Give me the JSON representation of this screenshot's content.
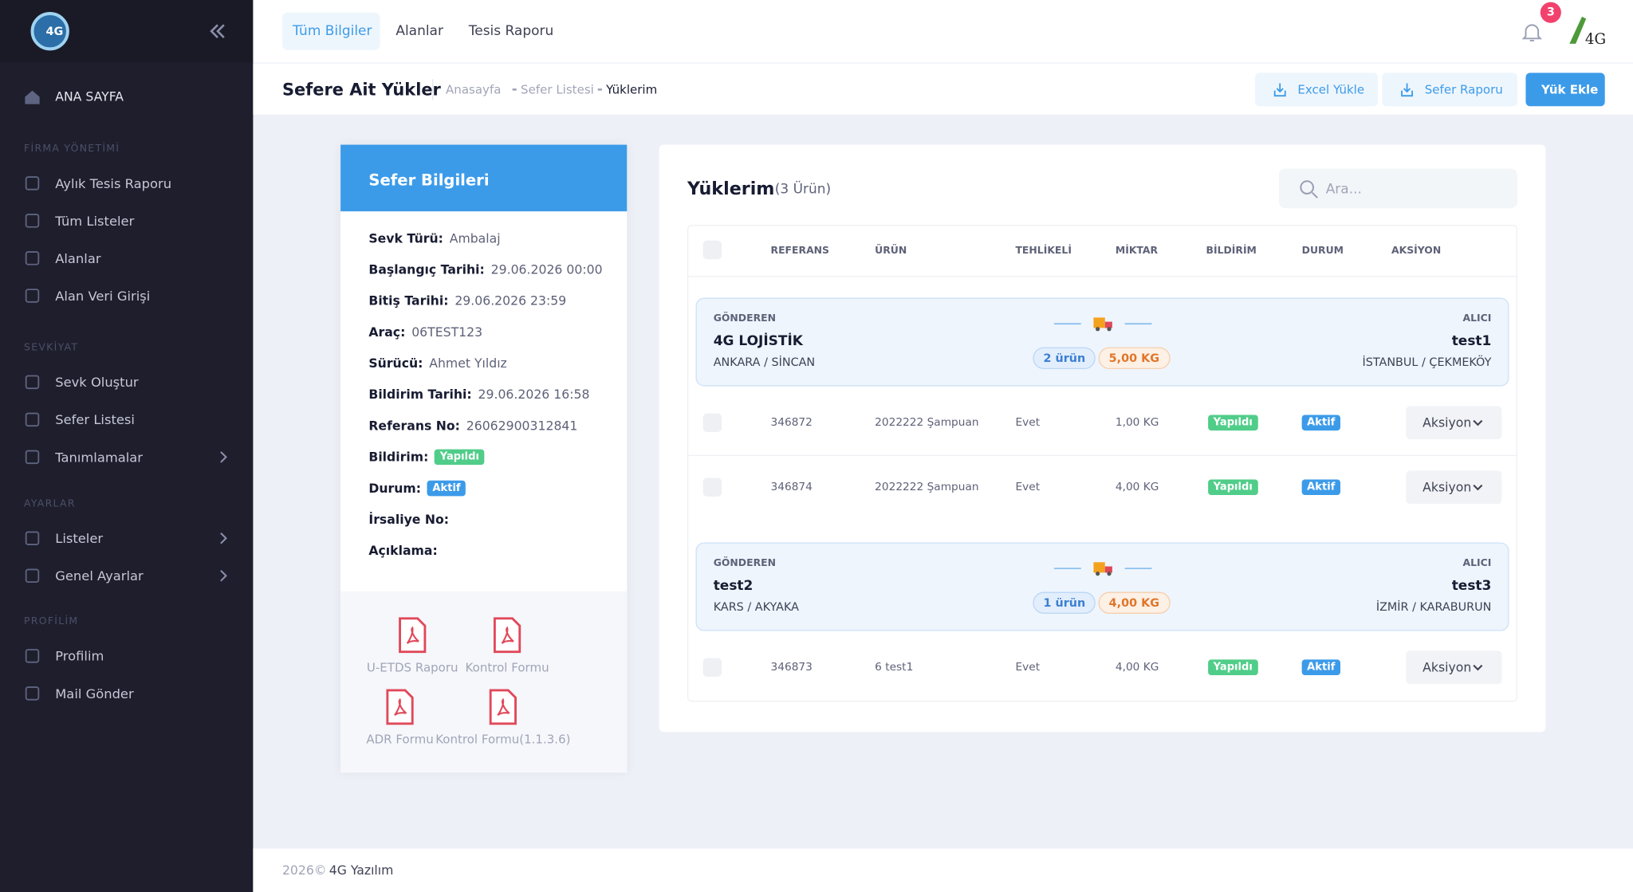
{
  "sidebar": {
    "logo": "4G",
    "home": "ANA SAYFA",
    "sections": [
      {
        "title": "FİRMA YÖNETİMİ",
        "items": [
          "Aylık Tesis Raporu",
          "Tüm Listeler",
          "Alanlar",
          "Alan Veri Girişi"
        ]
      },
      {
        "title": "SEVKİYAT",
        "items": [
          "Sevk Oluştur",
          "Sefer Listesi",
          "Tanımlamalar"
        ]
      },
      {
        "title": "AYARLAR",
        "items": [
          "Listeler",
          "Genel Ayarlar"
        ]
      },
      {
        "title": "PROFİLİM",
        "items": [
          "Profilim",
          "Mail Gönder"
        ]
      }
    ]
  },
  "topbar": {
    "tabs": [
      "Tüm Bilgiler",
      "Alanlar",
      "Tesis Raporu"
    ],
    "notifications": 3,
    "logo": "4G"
  },
  "subheader": {
    "title": "Sefere Ait Yükler",
    "breadcrumb": [
      "Anasayfa",
      "Sefer Listesi",
      "Yüklerim"
    ],
    "buttons": [
      "Excel Yükle",
      "Sefer Raporu",
      "Yük Ekle"
    ]
  },
  "sefer": {
    "title": "Sefer Bilgileri",
    "fields": [
      {
        "label": "Sevk Türü:",
        "value": "Ambalaj"
      },
      {
        "label": "Başlangıç Tarihi:",
        "value": "29.06.2026 00:00"
      },
      {
        "label": "Bitiş Tarihi:",
        "value": "29.06.2026 23:59"
      },
      {
        "label": "Araç:",
        "value": "06TEST123"
      },
      {
        "label": "Sürücü:",
        "value": "Ahmet Yıldız"
      },
      {
        "label": "Bildirim Tarihi:",
        "value": "29.06.2026 16:58"
      },
      {
        "label": "Referans No:",
        "value": "26062900312841"
      },
      {
        "label": "Bildirim:",
        "badge": "Yapıldı"
      },
      {
        "label": "Durum:",
        "badge": "Aktif"
      },
      {
        "label": "İrsaliye No:"
      },
      {
        "label": "Açıklama:"
      }
    ],
    "documents": [
      "U-ETDS Raporu",
      "Kontrol Formu",
      "ADR Formu",
      "Kontrol Formu(1.1.3.6)"
    ]
  },
  "loads": {
    "title": "Yüklerim",
    "count": "(3 Ürün)",
    "search": "Ara...",
    "columns": [
      "REFERANS",
      "ÜRÜN",
      "TEHLİKELİ",
      "MİKTAR",
      "BİLDİRİM",
      "DURUM",
      "AKSİYON"
    ],
    "groups": [
      {
        "sender_label": "GÖNDEREN",
        "sender": "4G LOJİSTİK",
        "sender_location": "ANKARA / SİNCAN",
        "product_count": "2 ürün",
        "weight": "5,00 KG",
        "receiver_label": "ALICI",
        "receiver": "test1",
        "receiver_location": "İSTANBUL / ÇEKMEKÖY",
        "rows": [
          [
            "346872",
            "2022222 Şampuan",
            "Evet",
            "1,00 KG",
            "Yapıldı",
            "Aktif",
            "Aksiyon"
          ],
          [
            "346874",
            "2022222 Şampuan",
            "Evet",
            "4,00 KG",
            "Yapıldı",
            "Aktif",
            "Aksiyon"
          ]
        ]
      },
      {
        "sender_label": "GÖNDEREN",
        "sender": "test2",
        "sender_location": "KARS / AKYAKA",
        "product_count": "1 ürün",
        "weight": "4,00 KG",
        "receiver_label": "ALICI",
        "receiver": "test3",
        "receiver_location": "İZMİR / KARABURUN",
        "rows": [
          [
            "346873",
            "6 test1",
            "Evet",
            "4,00 KG",
            "Yapıldı",
            "Aktif",
            "Aksiyon"
          ]
        ]
      }
    ]
  },
  "footer": {
    "year": "2026©",
    "company": "4G Yazılım"
  }
}
